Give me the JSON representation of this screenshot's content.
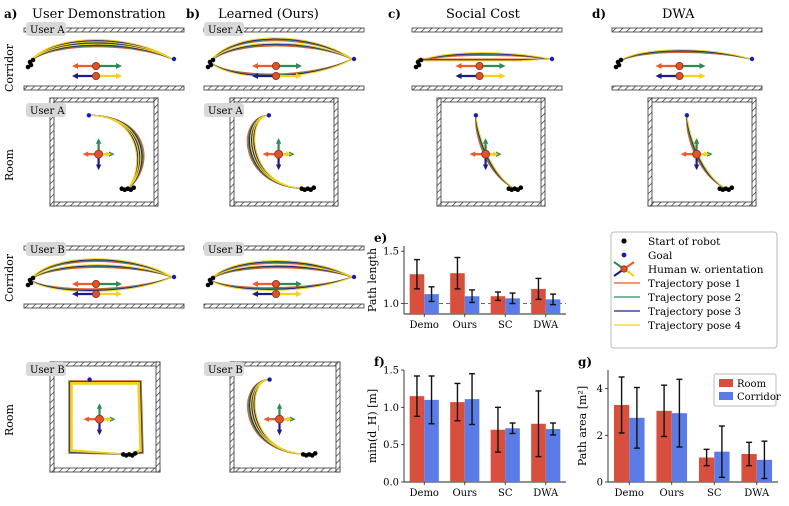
{
  "colors": {
    "pose1": "#ef5a2a",
    "pose2": "#2e8b57",
    "pose3": "#1c1d8a",
    "pose4": "#f2d21b",
    "goal": "#1a1ab8",
    "start": "#000000",
    "bar_red": "#d94f3d",
    "bar_blue": "#5b7ce6",
    "wall": "#444444",
    "user_tag_bg": "#d8d8d8"
  },
  "columns": [
    {
      "letter": "a)",
      "title": "User Demonstration"
    },
    {
      "letter": "b)",
      "title": "Learned (Ours)"
    },
    {
      "letter": "c)",
      "title": "Social Cost"
    },
    {
      "letter": "d)",
      "title": "DWA"
    }
  ],
  "row_labels": [
    "Corridor",
    "Room",
    "Corridor",
    "Room"
  ],
  "user_tags": {
    "a": "User A",
    "b": "User B"
  },
  "legend": {
    "start": "Start of robot",
    "goal": "Goal",
    "human": "Human w. orientation",
    "pose1": "Trajectory pose 1",
    "pose2": "Trajectory pose 2",
    "pose3": "Trajectory pose 3",
    "pose4": "Trajectory pose 4"
  },
  "chart_data": [
    {
      "panel": "e)",
      "type": "bar",
      "categories": [
        "Demo",
        "Ours",
        "SC",
        "DWA"
      ],
      "series": [
        {
          "name": "Room",
          "values": [
            1.28,
            1.29,
            1.07,
            1.14
          ],
          "errors": [
            0.14,
            0.15,
            0.04,
            0.1
          ]
        },
        {
          "name": "Corridor",
          "values": [
            1.09,
            1.07,
            1.05,
            1.04
          ],
          "errors": [
            0.07,
            0.06,
            0.05,
            0.05
          ]
        }
      ],
      "ylabel": "Path length",
      "ylim": [
        0.9,
        1.55
      ],
      "yticks": [
        "1.0",
        "1.5"
      ],
      "ytick_values": [
        1.0,
        1.5
      ],
      "reference_line": 1.0
    },
    {
      "panel": "f)",
      "type": "bar",
      "categories": [
        "Demo",
        "Ours",
        "SC",
        "DWA"
      ],
      "series": [
        {
          "name": "Room",
          "values": [
            1.15,
            1.07,
            0.7,
            0.78
          ],
          "errors": [
            0.27,
            0.25,
            0.3,
            0.44
          ]
        },
        {
          "name": "Corridor",
          "values": [
            1.1,
            1.11,
            0.72,
            0.71
          ],
          "errors": [
            0.32,
            0.34,
            0.07,
            0.08
          ]
        }
      ],
      "ylabel": "min(d_H) [m]",
      "ylim": [
        0,
        1.5
      ],
      "yticks": [
        "0.0",
        "0.5",
        "1.0",
        "1.5"
      ],
      "ytick_values": [
        0.0,
        0.5,
        1.0,
        1.5
      ]
    },
    {
      "panel": "g)",
      "type": "bar",
      "categories": [
        "Demo",
        "Ours",
        "SC",
        "DWA"
      ],
      "series": [
        {
          "name": "Room",
          "values": [
            3.3,
            3.05,
            1.05,
            1.2
          ],
          "errors": [
            1.2,
            1.1,
            0.35,
            0.5
          ]
        },
        {
          "name": "Corridor",
          "values": [
            2.75,
            2.95,
            1.3,
            0.95
          ],
          "errors": [
            1.3,
            1.45,
            1.1,
            0.8
          ]
        }
      ],
      "ylabel": "Path area [m²]",
      "ylim": [
        0,
        4.8
      ],
      "yticks": [
        "0",
        "2",
        "4"
      ],
      "ytick_values": [
        0,
        2,
        4
      ],
      "legend_labels": [
        "Room",
        "Corridor"
      ]
    }
  ]
}
